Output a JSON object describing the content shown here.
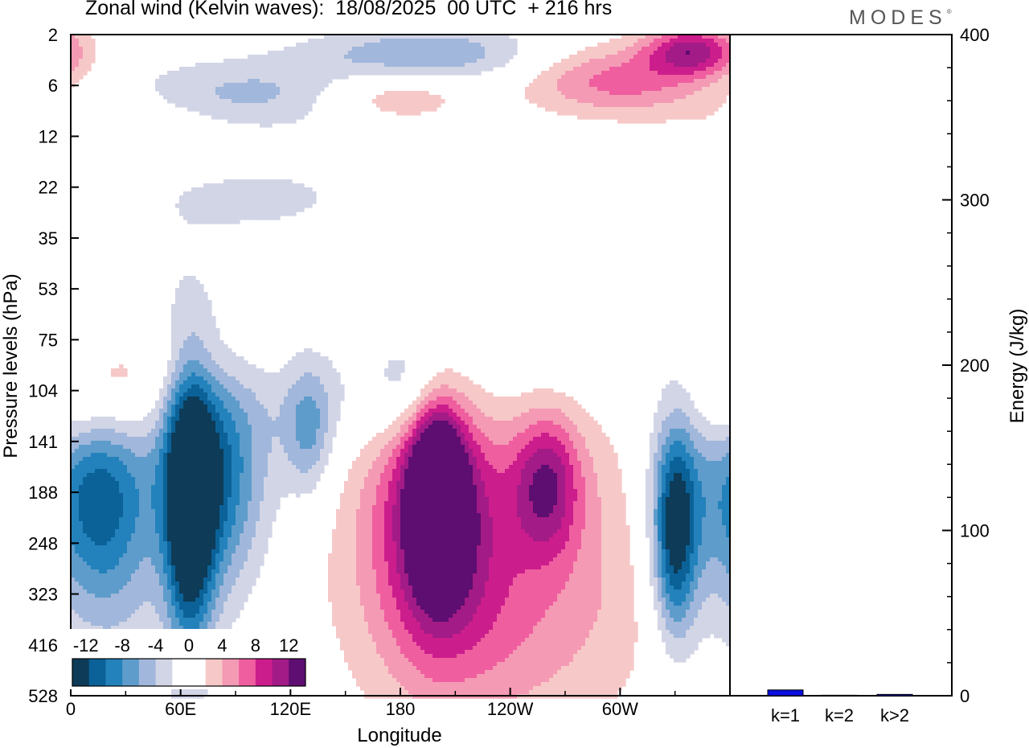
{
  "header": {
    "title": "Zonal wind (Kelvin waves):  18/08/2025  00 UTC  + 216 hrs",
    "logo": "MODES",
    "logo_mark": "®"
  },
  "colors": {
    "neg": [
      "#0d3b58",
      "#0b6298",
      "#2382bb",
      "#5e9ccb",
      "#a1b7db",
      "#d2d5e6"
    ],
    "zero": "#ffffff",
    "pos": [
      "#f7c8c8",
      "#f49ab4",
      "#ef5e9f",
      "#cc1d8c",
      "#a21b86",
      "#5e0d71"
    ],
    "bar": "#0a10e0"
  },
  "chart_data": [
    {
      "type": "heatmap",
      "title": "Zonal wind (Kelvin waves):  18/08/2025  00 UTC  + 216 hrs",
      "xlabel": "Longitude",
      "ylabel": "Pressure levels (hPa)",
      "x_ticks": [
        "0",
        "60E",
        "120E",
        "180",
        "120W",
        "60W"
      ],
      "x_tick_degrees": [
        0,
        60,
        120,
        180,
        240,
        300
      ],
      "xlim": [
        0,
        360
      ],
      "y_ticks": [
        "2",
        "6",
        "12",
        "22",
        "35",
        "53",
        "75",
        "104",
        "141",
        "188",
        "248",
        "323",
        "416",
        "528"
      ],
      "colorbar": {
        "labels": [
          "-12",
          "-8",
          "-4",
          "0",
          "4",
          "8",
          "12"
        ],
        "levels": [
          -14,
          -12,
          -10,
          -8,
          -6,
          -4,
          -2,
          2,
          4,
          6,
          8,
          10,
          12,
          14
        ]
      },
      "features": [
        {
          "lon": 65,
          "level": 9.3,
          "value": -13.5,
          "sx": 9,
          "sy": 2.0
        },
        {
          "lon": 78,
          "level": 8.8,
          "value": -8,
          "sx": 18,
          "sy": 1.6
        },
        {
          "lon": 15,
          "level": 9.0,
          "value": -7,
          "sx": 16,
          "sy": 1.4
        },
        {
          "lon": 40,
          "level": 8.2,
          "value": -4,
          "sx": 60,
          "sy": 1.9
        },
        {
          "lon": 20,
          "level": 10.6,
          "value": -3,
          "sx": 22,
          "sy": 1.8
        },
        {
          "lon": 130,
          "level": 7.8,
          "value": -5.5,
          "sx": 9,
          "sy": 0.9
        },
        {
          "lon": 190,
          "level": 6.9,
          "value": -4.5,
          "sx": 16,
          "sy": 0.8
        },
        {
          "lon": 170,
          "level": 7.0,
          "value": -3,
          "sx": 60,
          "sy": 0.9
        },
        {
          "lon": 330,
          "level": 9.8,
          "value": -11,
          "sx": 8,
          "sy": 1.4
        },
        {
          "lon": 335,
          "level": 9.2,
          "value": -6,
          "sx": 18,
          "sy": 1.8
        },
        {
          "lon": 290,
          "level": 5.3,
          "value": -2.5,
          "sx": 60,
          "sy": 1.3
        },
        {
          "lon": 200,
          "level": 8.9,
          "value": 13,
          "sx": 10,
          "sy": 1.3
        },
        {
          "lon": 200,
          "level": 9.4,
          "value": 9,
          "sx": 22,
          "sy": 1.9
        },
        {
          "lon": 260,
          "level": 8.8,
          "value": 9,
          "sx": 13,
          "sy": 1.0
        },
        {
          "lon": 210,
          "level": 9.6,
          "value": 5,
          "sx": 55,
          "sy": 2.4
        },
        {
          "lon": 240,
          "level": 11.8,
          "value": 3,
          "sx": 45,
          "sy": 1.6
        },
        {
          "lon": 320,
          "level": 9.0,
          "value": 3,
          "sx": 35,
          "sy": 2.4
        },
        {
          "lon": 15,
          "level": 7.2,
          "value": 6,
          "sx": 28,
          "sy": 0.8
        },
        {
          "lon": 55,
          "level": 6.4,
          "value": 3,
          "sx": 50,
          "sy": 0.7
        },
        {
          "lon": 90,
          "level": 1.2,
          "value": -5,
          "sx": 60,
          "sy": 0.5
        },
        {
          "lon": 195,
          "level": 0.4,
          "value": -6,
          "sx": 45,
          "sy": 0.4
        },
        {
          "lon": 175,
          "level": 1.2,
          "value": 5,
          "sx": 30,
          "sy": 0.4
        },
        {
          "lon": 300,
          "level": 0.9,
          "value": 7,
          "sx": 38,
          "sy": 0.5
        },
        {
          "lon": 340,
          "level": 0.3,
          "value": 10,
          "sx": 18,
          "sy": 0.35
        },
        {
          "lon": 30,
          "level": 1.7,
          "value": 3,
          "sx": 40,
          "sy": 0.6
        },
        {
          "lon": 100,
          "level": 3.2,
          "value": -2.5,
          "sx": 50,
          "sy": 0.6
        }
      ]
    },
    {
      "type": "bar",
      "title": "",
      "categories": [
        "k=1",
        "k=2",
        "k>2"
      ],
      "values": [
        3.5,
        0.3,
        0.8
      ],
      "ylabel": "Energy (J/kg)",
      "ylim": [
        0,
        400
      ],
      "y_ticks": [
        "0",
        "100",
        "200",
        "300",
        "400"
      ]
    }
  ]
}
